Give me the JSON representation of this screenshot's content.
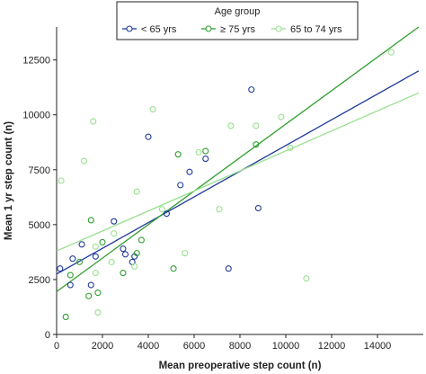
{
  "chart_data": {
    "type": "scatter",
    "xlabel": "Mean preoperative step count (n)",
    "ylabel": "Mean 1 yr step count (n)",
    "xlim": [
      0,
      16000
    ],
    "ylim": [
      0,
      14000
    ],
    "xticks": [
      "0",
      "2000",
      "4000",
      "6000",
      "8000",
      "10000",
      "12000",
      "14000"
    ],
    "yticks": [
      "0",
      "2500",
      "5000",
      "7500",
      "10000",
      "12500"
    ],
    "grid": false,
    "legend": {
      "title": "Age group",
      "placement": "top-center"
    },
    "series": [
      {
        "name": "< 65 yrs",
        "color": "#1f3a99",
        "points": [
          [
            150,
            3000
          ],
          [
            600,
            2250
          ],
          [
            700,
            3450
          ],
          [
            1100,
            4100
          ],
          [
            1500,
            2250
          ],
          [
            1700,
            3550
          ],
          [
            2500,
            5150
          ],
          [
            2900,
            3900
          ],
          [
            3000,
            3650
          ],
          [
            3300,
            3300
          ],
          [
            3400,
            3550
          ],
          [
            4000,
            9000
          ],
          [
            4800,
            5500
          ],
          [
            5400,
            6800
          ],
          [
            5800,
            7400
          ],
          [
            6500,
            8000
          ],
          [
            7500,
            3000
          ],
          [
            8500,
            11150
          ],
          [
            8800,
            5750
          ]
        ],
        "trend": [
          [
            0,
            2750
          ],
          [
            15800,
            12000
          ]
        ]
      },
      {
        "name": "≥ 75 yrs",
        "color": "#2e9e2e",
        "points": [
          [
            400,
            800
          ],
          [
            600,
            2700
          ],
          [
            1000,
            3300
          ],
          [
            1400,
            1750
          ],
          [
            1500,
            5200
          ],
          [
            1800,
            1900
          ],
          [
            2000,
            4200
          ],
          [
            2900,
            2800
          ],
          [
            3500,
            3700
          ],
          [
            3700,
            4300
          ],
          [
            5100,
            3000
          ],
          [
            5300,
            8200
          ],
          [
            6500,
            8350
          ],
          [
            8700,
            8650
          ]
        ],
        "trend": [
          [
            0,
            1950
          ],
          [
            15800,
            14000
          ]
        ]
      },
      {
        "name": "65 to 74 yrs",
        "color": "#98e08e",
        "points": [
          [
            200,
            7000
          ],
          [
            1200,
            7900
          ],
          [
            1600,
            9700
          ],
          [
            1700,
            4000
          ],
          [
            1700,
            2800
          ],
          [
            1800,
            1000
          ],
          [
            2400,
            3300
          ],
          [
            2500,
            4600
          ],
          [
            3400,
            3100
          ],
          [
            3500,
            6500
          ],
          [
            4200,
            10250
          ],
          [
            4600,
            5700
          ],
          [
            5600,
            3700
          ],
          [
            6200,
            8300
          ],
          [
            7100,
            5700
          ],
          [
            7600,
            9500
          ],
          [
            8700,
            9500
          ],
          [
            9800,
            9900
          ],
          [
            10900,
            2550
          ],
          [
            10200,
            8500
          ],
          [
            14600,
            12850
          ]
        ],
        "trend": [
          [
            0,
            3800
          ],
          [
            15800,
            11000
          ]
        ]
      }
    ]
  }
}
